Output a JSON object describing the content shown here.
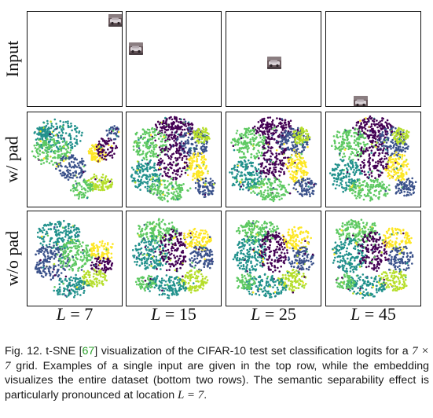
{
  "row_labels": [
    "Input",
    "w/ pad",
    "w/o pad"
  ],
  "column_labels": [
    {
      "var": "L",
      "rel": "=",
      "val": "7"
    },
    {
      "var": "L",
      "rel": "=",
      "val": "15"
    },
    {
      "var": "L",
      "rel": "=",
      "val": "25"
    },
    {
      "var": "L",
      "rel": "=",
      "val": "45"
    }
  ],
  "palette": {
    "purple": "#440154",
    "indigo": "#3b528b",
    "teal": "#21918c",
    "green": "#5ec962",
    "lime": "#b5de2b",
    "yellow": "#fde725"
  },
  "caption": {
    "prefix": "Fig. 12. t-SNE [",
    "ref": "67",
    "mid1": "] visualization of the CIFAR-10 test set classification logits for a ",
    "math_grid": "7 × 7",
    "mid2": " grid. Examples of a single input are given in the top row, while the embedding visualizes the entire dataset (bottom two rows). The semantic separability effect is particularly pronounced at location ",
    "math_loc": "L = 7",
    "suffix": "."
  },
  "input_icon": "car-thumbnail-icon"
}
